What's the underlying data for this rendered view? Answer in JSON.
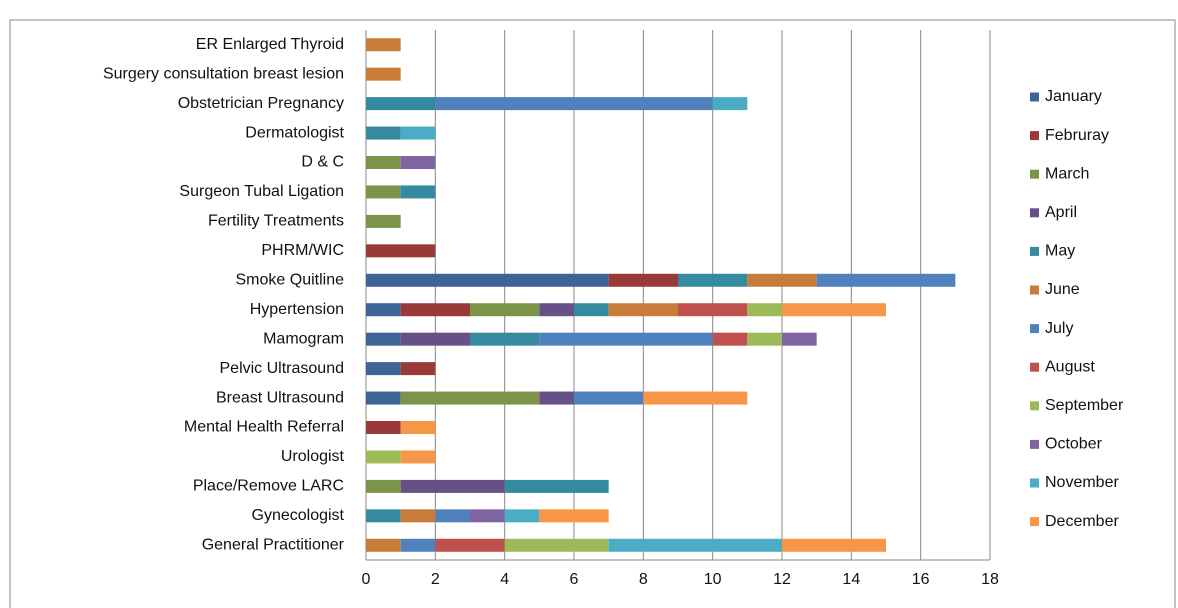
{
  "chart_data": {
    "type": "stacked-bar-horizontal",
    "categories": [
      "ER Enlarged Thyroid",
      "Surgery consultation breast lesion",
      "Obstetrician Pregnancy",
      "Dermatologist",
      "D & C",
      "Surgeon Tubal Ligation",
      "Fertility Treatments",
      "PHRM/WIC",
      "Smoke Quitline",
      "Hypertension",
      "Mamogram",
      "Pelvic Ultrasound",
      "Breast Ultrasound",
      "Mental Health Referral",
      "Urologist",
      "Place/Remove LARC",
      "Gynecologist",
      "General Practitioner"
    ],
    "series": [
      {
        "name": "January",
        "color": "#3e6497",
        "values": [
          0,
          0,
          0,
          0,
          0,
          0,
          0,
          0,
          7,
          1,
          1,
          1,
          1,
          0,
          0,
          0,
          0,
          0
        ]
      },
      {
        "name": "Februray",
        "color": "#9a3a38",
        "values": [
          0,
          0,
          0,
          0,
          0,
          0,
          0,
          2,
          2,
          2,
          0,
          1,
          0,
          1,
          0,
          0,
          0,
          0
        ]
      },
      {
        "name": "March",
        "color": "#7b9449",
        "values": [
          0,
          0,
          0,
          0,
          1,
          1,
          1,
          0,
          0,
          2,
          0,
          0,
          4,
          0,
          0,
          1,
          0,
          0
        ]
      },
      {
        "name": "April",
        "color": "#665086",
        "values": [
          0,
          0,
          0,
          0,
          0,
          0,
          0,
          0,
          0,
          1,
          2,
          0,
          1,
          0,
          0,
          3,
          0,
          0
        ]
      },
      {
        "name": "May",
        "color": "#368a9f",
        "values": [
          0,
          0,
          2,
          1,
          0,
          1,
          0,
          0,
          2,
          1,
          2,
          0,
          0,
          0,
          0,
          3,
          1,
          0
        ]
      },
      {
        "name": "June",
        "color": "#c77c3a",
        "values": [
          1,
          1,
          0,
          0,
          0,
          0,
          0,
          0,
          2,
          2,
          0,
          0,
          0,
          0,
          0,
          0,
          1,
          1
        ]
      },
      {
        "name": "July",
        "color": "#4f81bd",
        "values": [
          0,
          0,
          8,
          0,
          0,
          0,
          0,
          0,
          4,
          0,
          5,
          0,
          2,
          0,
          0,
          0,
          1,
          1
        ]
      },
      {
        "name": "August",
        "color": "#c0504d",
        "values": [
          0,
          0,
          0,
          0,
          0,
          0,
          0,
          0,
          0,
          2,
          1,
          0,
          0,
          0,
          0,
          0,
          0,
          2
        ]
      },
      {
        "name": "September",
        "color": "#9bbb59",
        "values": [
          0,
          0,
          0,
          0,
          0,
          0,
          0,
          0,
          0,
          1,
          1,
          0,
          0,
          0,
          1,
          0,
          0,
          3
        ]
      },
      {
        "name": "October",
        "color": "#8064a2",
        "values": [
          0,
          0,
          0,
          0,
          1,
          0,
          0,
          0,
          0,
          0,
          1,
          0,
          0,
          0,
          0,
          0,
          1,
          0
        ]
      },
      {
        "name": "November",
        "color": "#4bacc6",
        "values": [
          0,
          0,
          1,
          1,
          0,
          0,
          0,
          0,
          0,
          0,
          0,
          0,
          0,
          0,
          0,
          0,
          1,
          5
        ]
      },
      {
        "name": "December",
        "color": "#f79646",
        "values": [
          0,
          0,
          0,
          0,
          0,
          0,
          0,
          0,
          0,
          3,
          0,
          0,
          3,
          1,
          1,
          0,
          2,
          3
        ]
      }
    ],
    "xlim": [
      0,
      18
    ],
    "xticks": [
      0,
      2,
      4,
      6,
      8,
      10,
      12,
      14,
      16,
      18
    ],
    "grid": true,
    "legend": "right"
  }
}
